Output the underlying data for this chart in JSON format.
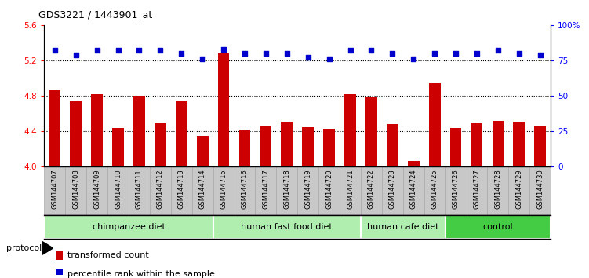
{
  "title": "GDS3221 / 1443901_at",
  "samples": [
    "GSM144707",
    "GSM144708",
    "GSM144709",
    "GSM144710",
    "GSM144711",
    "GSM144712",
    "GSM144713",
    "GSM144714",
    "GSM144715",
    "GSM144716",
    "GSM144717",
    "GSM144718",
    "GSM144719",
    "GSM144720",
    "GSM144721",
    "GSM144722",
    "GSM144723",
    "GSM144724",
    "GSM144725",
    "GSM144726",
    "GSM144727",
    "GSM144728",
    "GSM144729",
    "GSM144730"
  ],
  "bar_values": [
    4.86,
    4.74,
    4.82,
    4.44,
    4.8,
    4.5,
    4.74,
    4.35,
    5.28,
    4.42,
    4.46,
    4.51,
    4.45,
    4.43,
    4.82,
    4.78,
    4.48,
    4.07,
    4.94,
    4.44,
    4.5,
    4.52,
    4.51,
    4.46
  ],
  "percentile_values": [
    82,
    79,
    82,
    82,
    82,
    82,
    80,
    76,
    83,
    80,
    80,
    80,
    77,
    76,
    82,
    82,
    80,
    76,
    80,
    80,
    80,
    82,
    80,
    79
  ],
  "bar_color": "#cc0000",
  "percentile_color": "#0000cc",
  "ylim_left": [
    4.0,
    5.6
  ],
  "ylim_right": [
    0,
    100
  ],
  "yticks_left": [
    4.0,
    4.4,
    4.8,
    5.2,
    5.6
  ],
  "yticks_right": [
    0,
    25,
    50,
    75,
    100
  ],
  "ytick_labels_right": [
    "0",
    "25",
    "50",
    "75",
    "100%"
  ],
  "hlines": [
    4.4,
    4.8,
    5.2
  ],
  "groups": [
    {
      "label": "chimpanzee diet",
      "start": 0,
      "end": 8,
      "color": "#b0eeb0"
    },
    {
      "label": "human fast food diet",
      "start": 8,
      "end": 15,
      "color": "#b0eeb0"
    },
    {
      "label": "human cafe diet",
      "start": 15,
      "end": 19,
      "color": "#b0eeb0"
    },
    {
      "label": "control",
      "start": 19,
      "end": 24,
      "color": "#44cc44"
    }
  ],
  "protocol_label": "protocol",
  "legend_items": [
    {
      "color": "#cc0000",
      "label": "transformed count"
    },
    {
      "color": "#0000cc",
      "label": "percentile rank within the sample"
    }
  ],
  "background_color": "#ffffff",
  "tick_box_color": "#c8c8c8",
  "tick_box_edge_color": "#aaaaaa"
}
